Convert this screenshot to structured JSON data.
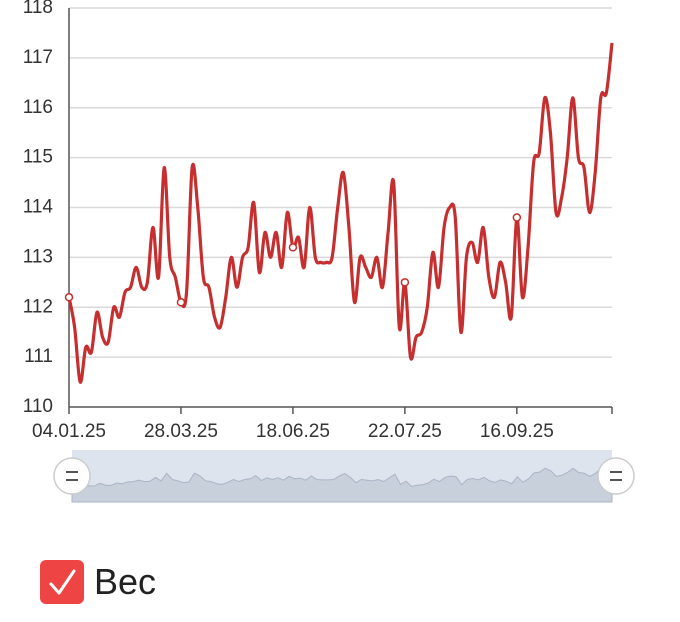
{
  "chart_data": {
    "type": "line",
    "categories": [
      "04.01.25",
      null,
      null,
      null,
      null,
      null,
      null,
      null,
      null,
      null,
      null,
      null,
      null,
      null,
      null,
      null,
      null,
      null,
      null,
      null,
      "28.03.25",
      null,
      null,
      null,
      null,
      null,
      null,
      null,
      null,
      null,
      null,
      null,
      null,
      null,
      null,
      null,
      null,
      null,
      null,
      null,
      "18.06.25",
      null,
      null,
      null,
      null,
      null,
      null,
      null,
      null,
      null,
      null,
      null,
      null,
      null,
      null,
      null,
      null,
      null,
      null,
      null,
      "22.07.25",
      null,
      null,
      null,
      null,
      null,
      null,
      null,
      null,
      null,
      null,
      null,
      null,
      null,
      null,
      null,
      null,
      null,
      null,
      null,
      "16.09.25",
      null,
      null,
      null,
      null,
      null,
      null,
      null,
      null,
      null,
      null,
      null,
      null,
      null,
      null,
      null,
      null,
      null
    ],
    "series": [
      {
        "name": "Вес",
        "color": "#c62f2f",
        "values": [
          112.2,
          111.6,
          110.5,
          111.2,
          111.1,
          111.9,
          111.4,
          111.3,
          112.0,
          111.8,
          112.3,
          112.4,
          112.8,
          112.4,
          112.5,
          113.6,
          112.6,
          114.8,
          113.0,
          112.6,
          112.1,
          112.3,
          114.8,
          114.0,
          112.6,
          112.4,
          111.8,
          111.6,
          112.2,
          113.0,
          112.4,
          113.0,
          113.2,
          114.1,
          112.7,
          113.5,
          113.0,
          113.5,
          112.8,
          113.9,
          113.2,
          113.4,
          112.8,
          114.0,
          113.0,
          112.9,
          112.9,
          113.0,
          114.0,
          114.7,
          113.6,
          112.1,
          113.0,
          112.8,
          112.6,
          113.0,
          112.4,
          113.5,
          114.5,
          111.6,
          112.5,
          111.0,
          111.4,
          111.5,
          112.0,
          113.1,
          112.4,
          113.6,
          114.0,
          113.8,
          111.5,
          113.0,
          113.3,
          112.9,
          113.6,
          112.6,
          112.2,
          112.9,
          112.5,
          111.8,
          113.8,
          112.2,
          113.2,
          114.9,
          115.1,
          116.2,
          115.5,
          113.9,
          114.2,
          115.0,
          116.2,
          115.0,
          114.8,
          113.9,
          114.7,
          116.2,
          116.3,
          117.3
        ]
      }
    ],
    "ylim": [
      110,
      118
    ],
    "yticks": [
      110,
      111,
      112,
      113,
      114,
      115,
      116,
      117,
      118
    ],
    "grid": true
  }
}
